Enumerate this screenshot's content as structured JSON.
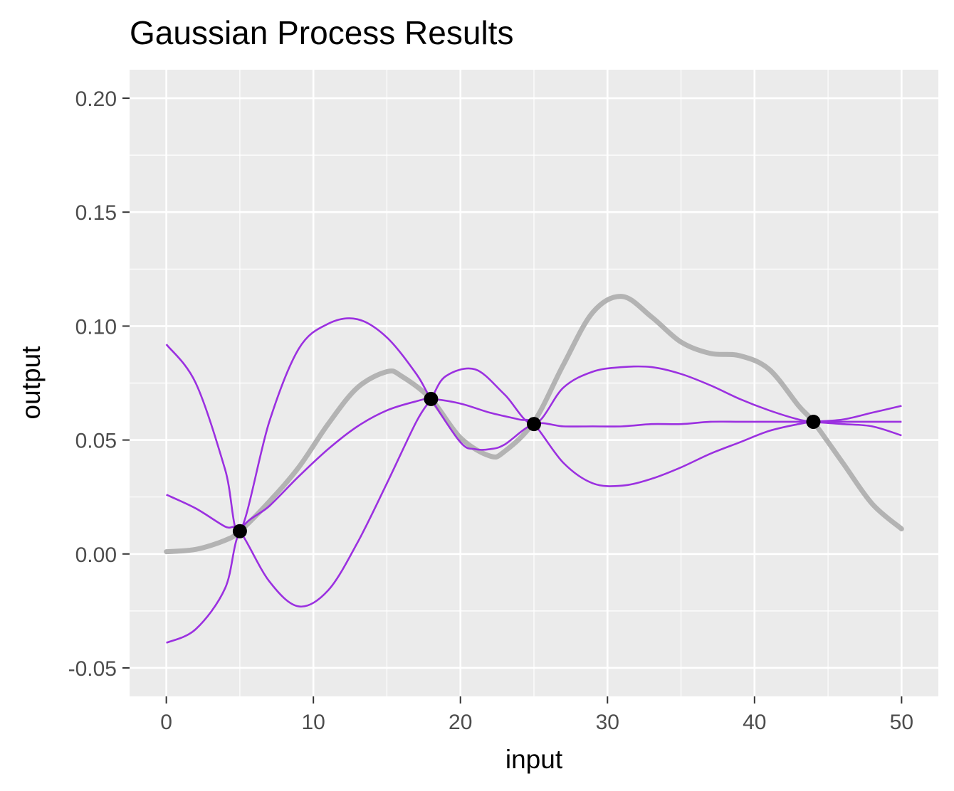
{
  "chart_data": {
    "type": "line",
    "title": "Gaussian Process Results",
    "xlabel": "input",
    "ylabel": "output",
    "xlim": [
      -2.5,
      52.5
    ],
    "ylim": [
      -0.0625,
      0.2125
    ],
    "x_ticks": [
      0,
      10,
      20,
      30,
      40,
      50
    ],
    "x_tick_labels": [
      "0",
      "10",
      "20",
      "30",
      "40",
      "50"
    ],
    "x_minor_ticks": [
      5,
      15,
      25,
      35,
      45
    ],
    "y_ticks": [
      -0.05,
      0.0,
      0.05,
      0.1,
      0.15,
      0.2
    ],
    "y_tick_labels": [
      "-0.05",
      "0.00",
      "0.05",
      "0.10",
      "0.15",
      "0.20"
    ],
    "y_minor_ticks": [
      -0.025,
      0.025,
      0.075,
      0.125,
      0.175
    ],
    "grid": true,
    "legend": "none",
    "colors": {
      "panel_background": "#ebebeb",
      "grid": "#ffffff",
      "true_function": "#b3b3b3",
      "samples": "#9b30e0",
      "observations": "#000000"
    },
    "true_function": {
      "x": [
        0,
        2,
        4,
        5,
        7,
        9,
        11,
        13,
        15,
        16,
        18,
        20,
        22,
        23,
        25,
        27,
        29,
        31,
        33,
        35,
        37,
        39,
        41,
        43,
        44,
        46,
        48,
        50
      ],
      "y": [
        0.001,
        0.002,
        0.006,
        0.01,
        0.023,
        0.038,
        0.057,
        0.073,
        0.08,
        0.078,
        0.068,
        0.051,
        0.043,
        0.045,
        0.058,
        0.083,
        0.106,
        0.113,
        0.104,
        0.093,
        0.088,
        0.087,
        0.081,
        0.065,
        0.058,
        0.04,
        0.022,
        0.011
      ]
    },
    "series": [
      {
        "x": [
          0,
          2,
          4,
          5,
          7,
          9,
          11,
          13,
          15,
          17,
          18,
          20,
          21,
          22,
          23,
          25,
          27,
          29,
          31,
          33,
          35,
          37,
          39,
          41,
          43,
          44,
          46,
          48,
          50
        ],
        "y": [
          0.092,
          0.075,
          0.037,
          0.01,
          0.058,
          0.09,
          0.101,
          0.103,
          0.095,
          0.079,
          0.068,
          0.049,
          0.046,
          0.046,
          0.048,
          0.057,
          0.056,
          0.056,
          0.056,
          0.057,
          0.057,
          0.058,
          0.058,
          0.058,
          0.058,
          0.058,
          0.058,
          0.058,
          0.058
        ]
      },
      {
        "x": [
          0,
          2,
          4,
          5,
          7,
          9,
          11,
          13,
          15,
          17,
          18,
          19,
          21,
          23,
          25,
          27,
          29,
          31,
          33,
          35,
          37,
          39,
          41,
          43,
          44,
          46,
          48,
          50
        ],
        "y": [
          0.026,
          0.02,
          0.012,
          0.01,
          -0.012,
          -0.023,
          -0.016,
          0.005,
          0.031,
          0.058,
          0.068,
          0.078,
          0.081,
          0.07,
          0.057,
          0.073,
          0.08,
          0.082,
          0.082,
          0.079,
          0.074,
          0.068,
          0.063,
          0.059,
          0.058,
          0.057,
          0.056,
          0.052
        ]
      },
      {
        "x": [
          0,
          2,
          4,
          5,
          7,
          9,
          11,
          13,
          15,
          17,
          18,
          20,
          22,
          24,
          25,
          27,
          29,
          31,
          33,
          35,
          37,
          39,
          41,
          43,
          44,
          46,
          48,
          50
        ],
        "y": [
          -0.039,
          -0.033,
          -0.015,
          0.01,
          0.021,
          0.034,
          0.046,
          0.056,
          0.063,
          0.067,
          0.068,
          0.066,
          0.062,
          0.059,
          0.057,
          0.04,
          0.031,
          0.03,
          0.033,
          0.038,
          0.044,
          0.049,
          0.054,
          0.057,
          0.058,
          0.059,
          0.062,
          0.065
        ]
      }
    ],
    "observations": {
      "x": [
        5,
        18,
        25,
        44
      ],
      "y": [
        0.01,
        0.068,
        0.057,
        0.058
      ]
    }
  }
}
